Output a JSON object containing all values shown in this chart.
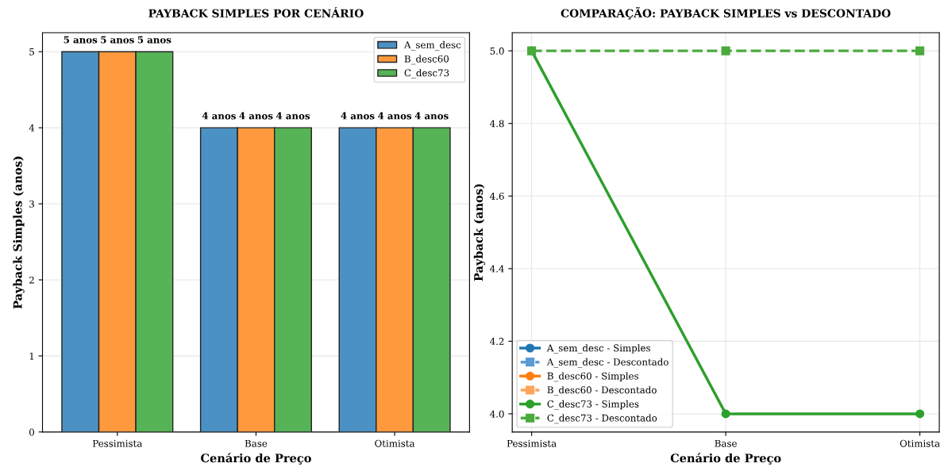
{
  "chart_data": [
    {
      "type": "bar",
      "title": "PAYBACK SIMPLES POR CENÁRIO",
      "xlabel": "Cenário de Preço",
      "ylabel": "Payback Simples (anos)",
      "categories": [
        "Pessimista",
        "Base",
        "Otimista"
      ],
      "series": [
        {
          "name": "A_sem_desc",
          "color": "#4c91c3",
          "values": [
            5,
            4,
            4
          ],
          "value_labels": [
            "5 anos",
            "4 anos",
            "4 anos"
          ]
        },
        {
          "name": "B_desc60",
          "color": "#ff993e",
          "values": [
            5,
            4,
            4
          ],
          "value_labels": [
            "5 anos",
            "4 anos",
            "4 anos"
          ]
        },
        {
          "name": "C_desc73",
          "color": "#56b356",
          "values": [
            5,
            4,
            4
          ],
          "value_labels": [
            "5 anos",
            "4 anos",
            "4 anos"
          ]
        }
      ],
      "ylim": [
        0,
        5.25
      ],
      "yticks": [
        0,
        1,
        2,
        3,
        4,
        5
      ],
      "grid": "y",
      "legend": "top right"
    },
    {
      "type": "line",
      "title": "COMPARAÇÃO: PAYBACK SIMPLES vs DESCONTADO",
      "xlabel": "Cenário de Preço",
      "ylabel": "Payback (anos)",
      "categories": [
        "Pessimista",
        "Base",
        "Otimista"
      ],
      "series": [
        {
          "name": "A_sem_desc - Simples",
          "color": "#1f77b4",
          "values": [
            null,
            null,
            null
          ],
          "marker": "circle",
          "line_style": "solid"
        },
        {
          "name": "A_sem_desc - Descontado",
          "color": "#5a9bd4",
          "values": [
            null,
            null,
            null
          ],
          "marker": "square",
          "line_style": "dashed"
        },
        {
          "name": "B_desc60 - Simples",
          "color": "#ff7f0e",
          "values": [
            null,
            null,
            null
          ],
          "marker": "circle",
          "line_style": "solid"
        },
        {
          "name": "B_desc60 - Descontado",
          "color": "#ffa55a",
          "values": [
            null,
            null,
            null
          ],
          "marker": "square",
          "line_style": "dashed"
        },
        {
          "name": "C_desc73 - Simples",
          "color": "#2ca02c",
          "values": [
            5,
            4,
            4
          ],
          "marker": "circle",
          "line_style": "solid"
        },
        {
          "name": "C_desc73 - Descontado",
          "color": "#4aaa3c",
          "values": [
            5,
            5,
            5
          ],
          "marker": "square",
          "line_style": "dashed"
        }
      ],
      "ylim": [
        3.95,
        5.05
      ],
      "yticks": [
        {
          "value": 4,
          "label": "4.0"
        },
        4.2,
        4.4,
        4.6,
        4.8,
        {
          "value": 5,
          "label": "5.0"
        }
      ],
      "grid": true,
      "legend": "bottom left"
    }
  ]
}
